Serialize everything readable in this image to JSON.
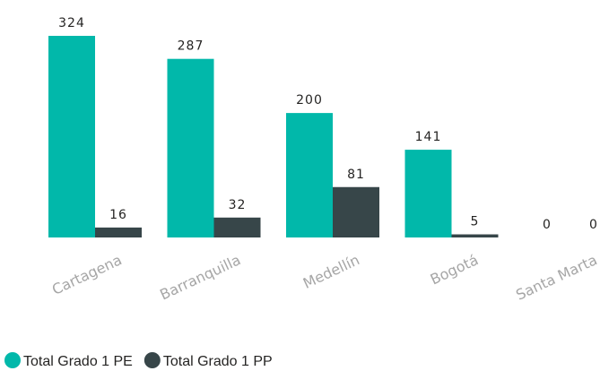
{
  "chart_data": {
    "type": "bar",
    "categories": [
      "Cartagena",
      "Barranquilla",
      "Medellín",
      "Bogotá",
      "Santa Marta"
    ],
    "series": [
      {
        "name": "Total Grado 1 PE",
        "color": "#01b8aa",
        "values": [
          324,
          287,
          200,
          141,
          0
        ]
      },
      {
        "name": "Total Grado 1 PP",
        "color": "#374649",
        "values": [
          16,
          32,
          81,
          5,
          0
        ]
      }
    ],
    "legend": "bottom-left"
  }
}
